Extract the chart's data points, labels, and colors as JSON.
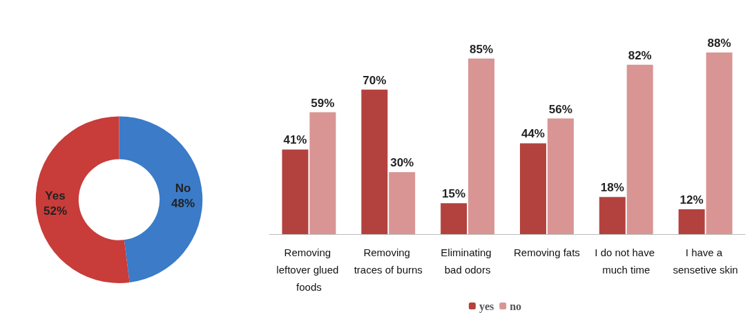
{
  "chart_data": [
    {
      "type": "donut",
      "categories": [
        "No",
        "Yes"
      ],
      "values": [
        48,
        52
      ],
      "colors": [
        "#3b7bc8",
        "#c83c3a"
      ],
      "value_labels": [
        "48%",
        "52%"
      ]
    },
    {
      "type": "bar",
      "categories": [
        "Removing leftover glued foods",
        "Removing traces of burns",
        "Eliminating bad odors",
        "Removing fats",
        "I do not have much time",
        "I have a sensetive skin"
      ],
      "series": [
        {
          "name": "yes",
          "color": "#b3423f",
          "values": [
            41,
            70,
            15,
            44,
            18,
            12
          ],
          "value_labels": [
            "41%",
            "70%",
            "15%",
            "44%",
            "18%",
            "12%"
          ]
        },
        {
          "name": "no",
          "color": "#d89594",
          "values": [
            59,
            30,
            85,
            56,
            82,
            88
          ],
          "value_labels": [
            "59%",
            "30%",
            "85%",
            "56%",
            "82%",
            "88%"
          ]
        }
      ],
      "legend": "bottom",
      "grid": false
    }
  ]
}
